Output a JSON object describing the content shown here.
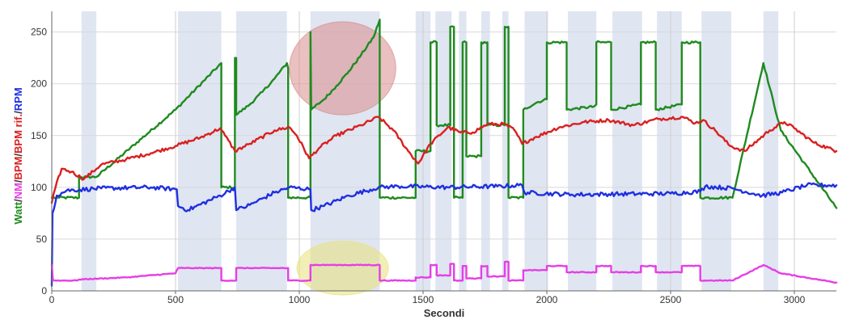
{
  "chart_data": {
    "type": "line",
    "xlabel": "Secondi",
    "ylabel_parts": [
      {
        "text": "Watt",
        "color": "#1f8a1f"
      },
      {
        "text": "/",
        "color": "#333333"
      },
      {
        "text": "NM",
        "color": "#e63ee6"
      },
      {
        "text": "/",
        "color": "#333333"
      },
      {
        "text": "BPM",
        "color": "#d92020"
      },
      {
        "text": "/",
        "color": "#333333"
      },
      {
        "text": "BPM rif.",
        "color": "#d92020"
      },
      {
        "text": "/",
        "color": "#333333"
      },
      {
        "text": "RPM",
        "color": "#1f2fe0"
      }
    ],
    "xlim": [
      0,
      3170
    ],
    "ylim": [
      0,
      270
    ],
    "x_ticks": [
      0,
      500,
      1000,
      1500,
      2000,
      2500,
      3000
    ],
    "y_ticks": [
      0,
      50,
      100,
      150,
      200,
      250
    ],
    "grid": true,
    "interval_bands": [
      [
        120,
        180
      ],
      [
        510,
        685
      ],
      [
        745,
        950
      ],
      [
        1045,
        1325
      ],
      [
        1470,
        1530
      ],
      [
        1550,
        1615
      ],
      [
        1645,
        1675
      ],
      [
        1735,
        1770
      ],
      [
        1820,
        1845
      ],
      [
        1910,
        2005
      ],
      [
        2085,
        2200
      ],
      [
        2265,
        2385
      ],
      [
        2445,
        2545
      ],
      [
        2625,
        2745
      ],
      [
        2875,
        2935
      ]
    ],
    "highlights": [
      {
        "cx": 1175,
        "cy": 215,
        "rx": 215,
        "ry": 45,
        "color": "#d98c8c"
      },
      {
        "cx": 1175,
        "cy": 22,
        "rx": 185,
        "ry": 26,
        "color": "#e8e27a"
      }
    ],
    "series": [
      {
        "name": "Watt",
        "color": "#1f8a1f",
        "step": true,
        "jitter": 1.2,
        "points": [
          [
            0,
            90
          ],
          [
            20,
            90
          ],
          [
            30,
            90
          ],
          [
            110,
            90
          ],
          [
            110,
            110
          ],
          [
            180,
            110
          ],
          [
            500,
            175
          ],
          [
            685,
            220
          ],
          [
            685,
            100
          ],
          [
            740,
            100
          ],
          [
            740,
            225
          ],
          [
            745,
            225
          ],
          [
            745,
            170
          ],
          [
            800,
            180
          ],
          [
            850,
            192
          ],
          [
            900,
            205
          ],
          [
            950,
            220
          ],
          [
            955,
            215
          ],
          [
            955,
            90
          ],
          [
            1045,
            90
          ],
          [
            1045,
            250
          ],
          [
            1048,
            175
          ],
          [
            1100,
            185
          ],
          [
            1150,
            198
          ],
          [
            1200,
            212
          ],
          [
            1250,
            228
          ],
          [
            1300,
            245
          ],
          [
            1325,
            262
          ],
          [
            1325,
            90
          ],
          [
            1470,
            90
          ],
          [
            1470,
            135
          ],
          [
            1530,
            135
          ],
          [
            1530,
            240
          ],
          [
            1555,
            240
          ],
          [
            1555,
            160
          ],
          [
            1610,
            160
          ],
          [
            1610,
            255
          ],
          [
            1625,
            255
          ],
          [
            1625,
            90
          ],
          [
            1660,
            90
          ],
          [
            1660,
            240
          ],
          [
            1675,
            240
          ],
          [
            1675,
            130
          ],
          [
            1735,
            130
          ],
          [
            1735,
            240
          ],
          [
            1760,
            240
          ],
          [
            1760,
            160
          ],
          [
            1830,
            160
          ],
          [
            1830,
            255
          ],
          [
            1845,
            255
          ],
          [
            1845,
            90
          ],
          [
            1905,
            90
          ],
          [
            1905,
            175
          ],
          [
            1960,
            182
          ],
          [
            2000,
            185
          ],
          [
            2000,
            240
          ],
          [
            2080,
            240
          ],
          [
            2080,
            175
          ],
          [
            2190,
            178
          ],
          [
            2200,
            180
          ],
          [
            2200,
            240
          ],
          [
            2260,
            240
          ],
          [
            2260,
            175
          ],
          [
            2380,
            180
          ],
          [
            2380,
            240
          ],
          [
            2440,
            240
          ],
          [
            2440,
            175
          ],
          [
            2545,
            180
          ],
          [
            2545,
            240
          ],
          [
            2620,
            240
          ],
          [
            2620,
            90
          ],
          [
            2750,
            90
          ],
          [
            2875,
            220
          ],
          [
            2945,
            155
          ],
          [
            3170,
            80
          ]
        ]
      },
      {
        "name": "BPM",
        "color": "#d92020",
        "step": false,
        "jitter": 1.6,
        "points": [
          [
            0,
            85
          ],
          [
            15,
            100
          ],
          [
            40,
            118
          ],
          [
            80,
            115
          ],
          [
            130,
            108
          ],
          [
            200,
            122
          ],
          [
            300,
            127
          ],
          [
            400,
            133
          ],
          [
            500,
            140
          ],
          [
            600,
            148
          ],
          [
            680,
            157
          ],
          [
            700,
            150
          ],
          [
            740,
            135
          ],
          [
            800,
            142
          ],
          [
            900,
            155
          ],
          [
            960,
            158
          ],
          [
            990,
            150
          ],
          [
            1040,
            128
          ],
          [
            1080,
            138
          ],
          [
            1150,
            150
          ],
          [
            1250,
            160
          ],
          [
            1320,
            168
          ],
          [
            1380,
            155
          ],
          [
            1440,
            135
          ],
          [
            1480,
            123
          ],
          [
            1530,
            142
          ],
          [
            1600,
            158
          ],
          [
            1650,
            153
          ],
          [
            1700,
            153
          ],
          [
            1760,
            161
          ],
          [
            1830,
            161
          ],
          [
            1870,
            155
          ],
          [
            1900,
            142
          ],
          [
            1950,
            148
          ],
          [
            2050,
            158
          ],
          [
            2150,
            163
          ],
          [
            2250,
            165
          ],
          [
            2350,
            160
          ],
          [
            2450,
            166
          ],
          [
            2550,
            168
          ],
          [
            2600,
            162
          ],
          [
            2630,
            165
          ],
          [
            2680,
            155
          ],
          [
            2740,
            140
          ],
          [
            2800,
            135
          ],
          [
            2900,
            155
          ],
          [
            2960,
            163
          ],
          [
            3000,
            157
          ],
          [
            3080,
            143
          ],
          [
            3170,
            135
          ]
        ]
      },
      {
        "name": "RPM",
        "color": "#1f2fe0",
        "step": false,
        "jitter": 2,
        "points": [
          [
            0,
            5
          ],
          [
            3,
            75
          ],
          [
            20,
            92
          ],
          [
            60,
            97
          ],
          [
            200,
            99
          ],
          [
            400,
            100
          ],
          [
            505,
            98
          ],
          [
            510,
            82
          ],
          [
            550,
            78
          ],
          [
            680,
            92
          ],
          [
            740,
            100
          ],
          [
            745,
            78
          ],
          [
            800,
            83
          ],
          [
            900,
            95
          ],
          [
            960,
            100
          ],
          [
            1045,
            98
          ],
          [
            1048,
            78
          ],
          [
            1100,
            82
          ],
          [
            1200,
            92
          ],
          [
            1320,
            100
          ],
          [
            1400,
            101
          ],
          [
            1600,
            100
          ],
          [
            1800,
            101
          ],
          [
            1900,
            102
          ],
          [
            1910,
            95
          ],
          [
            2100,
            93
          ],
          [
            2500,
            94
          ],
          [
            2620,
            96
          ],
          [
            2640,
            101
          ],
          [
            2750,
            99
          ],
          [
            2870,
            92
          ],
          [
            2950,
            95
          ],
          [
            3050,
            102
          ],
          [
            3170,
            102
          ]
        ]
      },
      {
        "name": "NM",
        "color": "#e63ee6",
        "step": true,
        "jitter": 0.4,
        "points": [
          [
            0,
            25
          ],
          [
            5,
            10
          ],
          [
            100,
            10
          ],
          [
            110,
            11
          ],
          [
            300,
            13
          ],
          [
            500,
            17
          ],
          [
            510,
            22
          ],
          [
            685,
            22
          ],
          [
            685,
            10
          ],
          [
            745,
            10
          ],
          [
            745,
            22
          ],
          [
            955,
            22
          ],
          [
            955,
            10
          ],
          [
            1045,
            10
          ],
          [
            1045,
            25
          ],
          [
            1325,
            25
          ],
          [
            1325,
            10
          ],
          [
            1470,
            10
          ],
          [
            1470,
            13
          ],
          [
            1530,
            13
          ],
          [
            1530,
            25
          ],
          [
            1555,
            25
          ],
          [
            1555,
            15
          ],
          [
            1610,
            15
          ],
          [
            1610,
            26
          ],
          [
            1625,
            26
          ],
          [
            1625,
            10
          ],
          [
            1660,
            10
          ],
          [
            1660,
            24
          ],
          [
            1675,
            24
          ],
          [
            1675,
            12
          ],
          [
            1735,
            12
          ],
          [
            1735,
            24
          ],
          [
            1760,
            24
          ],
          [
            1760,
            14
          ],
          [
            1830,
            14
          ],
          [
            1830,
            28
          ],
          [
            1845,
            28
          ],
          [
            1845,
            10
          ],
          [
            1905,
            10
          ],
          [
            1905,
            20
          ],
          [
            2000,
            20
          ],
          [
            2000,
            24
          ],
          [
            2080,
            24
          ],
          [
            2080,
            18
          ],
          [
            2200,
            18
          ],
          [
            2200,
            24
          ],
          [
            2260,
            24
          ],
          [
            2260,
            18
          ],
          [
            2380,
            18
          ],
          [
            2380,
            24
          ],
          [
            2440,
            24
          ],
          [
            2440,
            18
          ],
          [
            2545,
            18
          ],
          [
            2545,
            24
          ],
          [
            2620,
            24
          ],
          [
            2620,
            10
          ],
          [
            2750,
            10
          ],
          [
            2875,
            25
          ],
          [
            2945,
            17
          ],
          [
            3170,
            8
          ]
        ]
      }
    ]
  }
}
